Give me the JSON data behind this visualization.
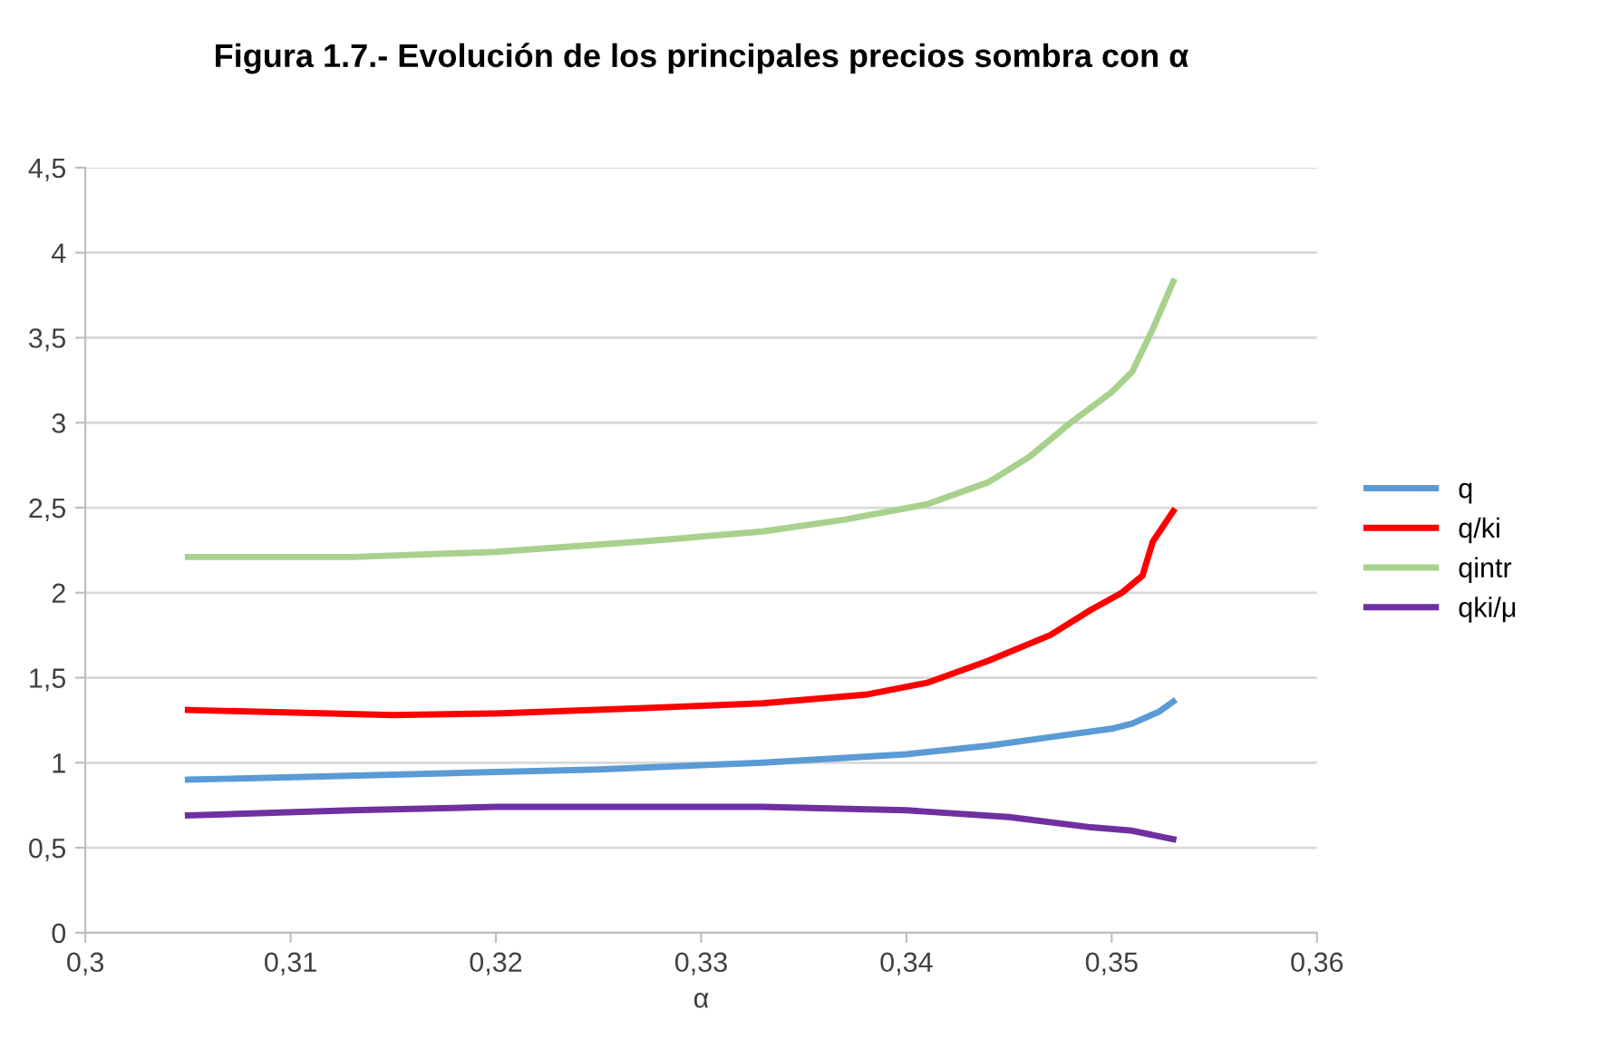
{
  "chart_data": {
    "type": "line",
    "title": "Figura 1.7.- Evolución de los principales precios sombra con α",
    "xlabel": "α",
    "xlim": [
      0.3,
      0.36
    ],
    "ylim": [
      0,
      4.5
    ],
    "xticks": [
      {
        "value": 0.3,
        "label": "0,3"
      },
      {
        "value": 0.31,
        "label": "0,31"
      },
      {
        "value": 0.32,
        "label": "0,32"
      },
      {
        "value": 0.33,
        "label": "0,33"
      },
      {
        "value": 0.34,
        "label": "0,34"
      },
      {
        "value": 0.35,
        "label": "0,35"
      },
      {
        "value": 0.36,
        "label": "0,36"
      }
    ],
    "yticks": [
      0,
      {
        "value": 0.5,
        "label": "0,5"
      },
      1,
      {
        "value": 1.5,
        "label": "1,5"
      },
      2,
      {
        "value": 2.5,
        "label": "2,5"
      },
      3,
      {
        "value": 3.5,
        "label": "3,5"
      },
      4,
      {
        "value": 4.5,
        "label": "4,5"
      }
    ],
    "grid": "y",
    "legend": "right",
    "marker": "none",
    "line_style": "solid",
    "series": [
      {
        "name": "q",
        "color": "#5b9bd5",
        "x": [
          0.305,
          0.315,
          0.325,
          0.333,
          0.34,
          0.344,
          0.347,
          0.35,
          0.351,
          0.3523,
          0.353
        ],
        "values": [
          0.9,
          0.93,
          0.96,
          1.0,
          1.05,
          1.1,
          1.15,
          1.2,
          1.23,
          1.3,
          1.36
        ]
      },
      {
        "name": "q/ki",
        "color": "#ff0000",
        "x": [
          0.305,
          0.315,
          0.32,
          0.327,
          0.333,
          0.338,
          0.341,
          0.344,
          0.347,
          0.349,
          0.3505,
          0.3515,
          0.352,
          0.353
        ],
        "values": [
          1.31,
          1.28,
          1.29,
          1.32,
          1.35,
          1.4,
          1.47,
          1.6,
          1.75,
          1.9,
          2.0,
          2.1,
          2.3,
          2.48
        ]
      },
      {
        "name": "qintr",
        "color": "#a9d18e",
        "x": [
          0.305,
          0.313,
          0.32,
          0.327,
          0.333,
          0.337,
          0.341,
          0.344,
          0.346,
          0.348,
          0.35,
          0.351,
          0.352,
          0.353
        ],
        "values": [
          2.21,
          2.21,
          2.24,
          2.3,
          2.36,
          2.43,
          2.52,
          2.65,
          2.8,
          3.0,
          3.18,
          3.3,
          3.55,
          3.83
        ]
      },
      {
        "name": "qki/μ",
        "color": "#7030a0",
        "x": [
          0.305,
          0.313,
          0.32,
          0.333,
          0.34,
          0.345,
          0.349,
          0.351,
          0.353
        ],
        "values": [
          0.69,
          0.72,
          0.74,
          0.74,
          0.72,
          0.68,
          0.62,
          0.6,
          0.55
        ]
      }
    ]
  }
}
